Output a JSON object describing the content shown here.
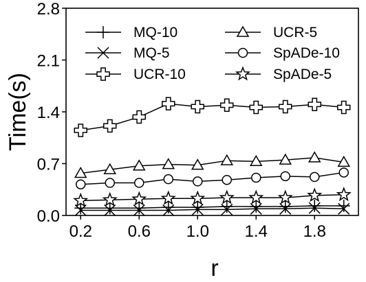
{
  "chart_data": {
    "type": "line",
    "xlabel": "r",
    "ylabel": "Time(s)",
    "xlim": [
      0.1,
      2.1
    ],
    "ylim": [
      0.0,
      2.8
    ],
    "xticks": [
      "0.2",
      "0.6",
      "1.0",
      "1.4",
      "1.8"
    ],
    "yticks": [
      "0.0",
      "0.7",
      "1.4",
      "2.1",
      "2.8"
    ],
    "grid": false,
    "legend_position": "top",
    "x": [
      0.2,
      0.4,
      0.6,
      0.8,
      1.0,
      1.2,
      1.4,
      1.6,
      1.8,
      2.0
    ],
    "series": [
      {
        "name": "MQ-10",
        "marker": "plus",
        "values": [
          0.1,
          0.1,
          0.1,
          0.11,
          0.11,
          0.12,
          0.12,
          0.12,
          0.13,
          0.13
        ]
      },
      {
        "name": "MQ-5",
        "marker": "x",
        "values": [
          0.07,
          0.07,
          0.07,
          0.07,
          0.08,
          0.08,
          0.09,
          0.09,
          0.1,
          0.09
        ]
      },
      {
        "name": "UCR-10",
        "marker": "thick-cross",
        "values": [
          1.15,
          1.21,
          1.33,
          1.51,
          1.47,
          1.49,
          1.46,
          1.47,
          1.5,
          1.46
        ]
      },
      {
        "name": "UCR-5",
        "marker": "triangle",
        "values": [
          0.57,
          0.62,
          0.67,
          0.69,
          0.68,
          0.74,
          0.73,
          0.75,
          0.78,
          0.72
        ]
      },
      {
        "name": "SpADe-10",
        "marker": "circle",
        "values": [
          0.42,
          0.44,
          0.44,
          0.49,
          0.46,
          0.48,
          0.51,
          0.53,
          0.52,
          0.58
        ]
      },
      {
        "name": "SpADe-5",
        "marker": "star",
        "values": [
          0.2,
          0.21,
          0.22,
          0.23,
          0.23,
          0.24,
          0.24,
          0.24,
          0.27,
          0.28
        ]
      }
    ]
  }
}
